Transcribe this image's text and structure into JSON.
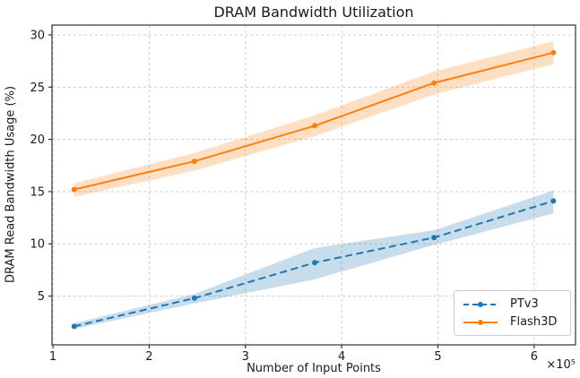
{
  "chart_data": {
    "type": "line",
    "title": "DRAM Bandwidth Utilization",
    "xlabel": "Number of Input Points",
    "ylabel": "DRAM Read Bandwidth Usage (%)",
    "x_scale_note": "×10⁵",
    "xlim": [
      0.99,
      6.43
    ],
    "ylim": [
      0.33,
      30.94
    ],
    "x_ticks": [
      1,
      2,
      3,
      4,
      5,
      6
    ],
    "y_ticks": [
      5,
      10,
      15,
      20,
      25,
      30
    ],
    "grid": true,
    "legend_position": "lower right",
    "x": [
      1.22,
      2.47,
      3.72,
      4.96,
      6.2
    ],
    "series": [
      {
        "name": "PTv3",
        "color": "#1f77b4",
        "line_style": "dashed",
        "values": [
          2.1,
          4.8,
          8.2,
          10.6,
          14.1
        ],
        "band_lower": [
          1.85,
          4.3,
          6.6,
          9.9,
          12.9
        ],
        "band_upper": [
          2.4,
          5.2,
          9.6,
          11.3,
          15.1
        ]
      },
      {
        "name": "Flash3D",
        "color": "#ff7f0e",
        "line_style": "solid",
        "values": [
          15.2,
          17.9,
          21.3,
          25.4,
          28.3
        ],
        "band_lower": [
          14.5,
          17.0,
          20.3,
          24.3,
          27.2
        ],
        "band_upper": [
          15.8,
          18.7,
          22.3,
          26.5,
          29.4
        ]
      }
    ],
    "colors": {
      "grid": "#c9c9c9",
      "spine": "#333333",
      "text": "#1a1a1a",
      "background": "#ffffff"
    },
    "band_opacity": 0.25
  }
}
